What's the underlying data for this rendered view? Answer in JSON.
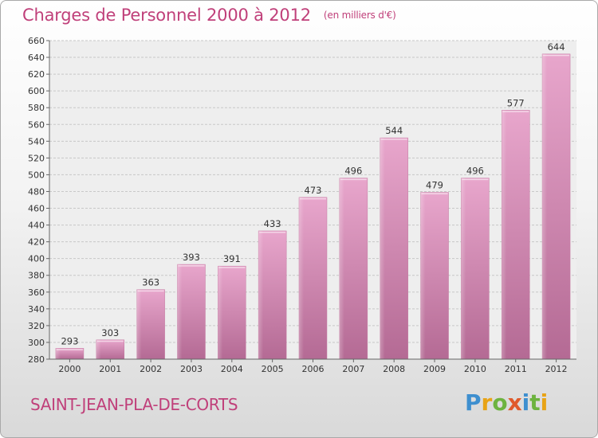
{
  "title": "Charges de Personnel 2000 à 2012",
  "unit": "(en milliers d'€)",
  "town": "SAINT-JEAN-PLA-DE-CORTS",
  "logo": {
    "letters": [
      "P",
      "r",
      "o",
      "x",
      "i",
      "t",
      "i"
    ],
    "colors": [
      "#3e8fcf",
      "#e8a316",
      "#6db33f",
      "#e05a2b",
      "#3e8fcf",
      "#6db33f",
      "#e8a316"
    ]
  },
  "chart_data": {
    "type": "bar",
    "categories": [
      "2000",
      "2001",
      "2002",
      "2003",
      "2004",
      "2005",
      "2006",
      "2007",
      "2008",
      "2009",
      "2010",
      "2011",
      "2012"
    ],
    "values": [
      293,
      303,
      363,
      393,
      391,
      433,
      473,
      496,
      544,
      479,
      496,
      577,
      644
    ],
    "ylim": [
      280,
      660
    ],
    "yticks": [
      280,
      300,
      320,
      340,
      360,
      380,
      400,
      420,
      440,
      460,
      480,
      500,
      520,
      540,
      560,
      580,
      600,
      620,
      640,
      660
    ],
    "grid": true,
    "bar_color": "#d07aa8"
  }
}
